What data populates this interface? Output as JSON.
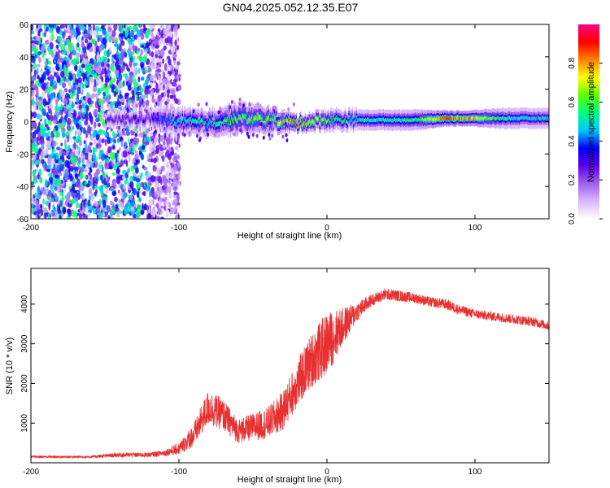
{
  "page_title": "GN04.2025.052.12.35.E07",
  "chart_data": [
    {
      "type": "heatmap",
      "title": "GN04.2025.052.12.35.E07",
      "xlabel": "Height of straight line (km)",
      "ylabel": "Frequency (Hz)",
      "xlim": [
        -200,
        150
      ],
      "ylim": [
        -60,
        60
      ],
      "x_ticks": [
        -200,
        -100,
        0,
        100
      ],
      "y_ticks": [
        60,
        40,
        20,
        0,
        -20,
        -40,
        -60
      ],
      "colorbar": {
        "label": "Normalized spectral amplitude",
        "range": [
          0,
          1
        ],
        "ticks": [
          "0.0",
          "0.2",
          "0.4",
          "0.6",
          "0.8"
        ],
        "tick_values": [
          0,
          0.2,
          0.4,
          0.6,
          0.8
        ],
        "colors": [
          "#ffffff",
          "#d8b8f8",
          "#a060f0",
          "#5a00e8",
          "#0000ff",
          "#00c8ff",
          "#00ff80",
          "#60ff00",
          "#ffff00",
          "#ff8000",
          "#ff0000",
          "#ff0080"
        ]
      },
      "noise_region": {
        "x_from": -200,
        "x_to": -105,
        "freq_spread": 60,
        "amplitude": 0.25
      },
      "ridge": [
        {
          "x": -150,
          "freq": 1,
          "amp": 0.3,
          "width": 3
        },
        {
          "x": -120,
          "freq": 2,
          "amp": 0.3,
          "width": 4
        },
        {
          "x": -110,
          "freq": 1,
          "amp": 0.4,
          "width": 5
        },
        {
          "x": -100,
          "freq": 0,
          "amp": 0.5,
          "width": 5
        },
        {
          "x": -80,
          "freq": -1,
          "amp": 0.55,
          "width": 5
        },
        {
          "x": -60,
          "freq": 2,
          "amp": 0.6,
          "width": 6
        },
        {
          "x": -40,
          "freq": 1,
          "amp": 0.65,
          "width": 5
        },
        {
          "x": -20,
          "freq": -1,
          "amp": 0.85,
          "width": 3
        },
        {
          "x": 0,
          "freq": 1,
          "amp": 0.6,
          "width": 4
        },
        {
          "x": 20,
          "freq": 1,
          "amp": 0.5,
          "width": 4
        },
        {
          "x": 60,
          "freq": 1,
          "amp": 0.55,
          "width": 4
        },
        {
          "x": 80,
          "freq": 2,
          "amp": 0.9,
          "width": 3
        },
        {
          "x": 95,
          "freq": 2,
          "amp": 0.8,
          "width": 3
        },
        {
          "x": 120,
          "freq": 2,
          "amp": 0.5,
          "width": 4
        },
        {
          "x": 150,
          "freq": 2,
          "amp": 0.45,
          "width": 4
        }
      ]
    },
    {
      "type": "line",
      "xlabel": "Height of straight line (km)",
      "ylabel": "SNR (10 * v/v)",
      "xlim": [
        -200,
        150
      ],
      "ylim": [
        0,
        4900
      ],
      "x_ticks": [
        -200,
        -100,
        0,
        100
      ],
      "y_ticks": [
        1000,
        2000,
        3000,
        4000
      ],
      "color": "#e83030",
      "series": [
        {
          "name": "SNR",
          "x": [
            -200,
            -180,
            -160,
            -140,
            -120,
            -110,
            -100,
            -90,
            -80,
            -70,
            -60,
            -50,
            -40,
            -30,
            -20,
            -10,
            0,
            10,
            20,
            30,
            40,
            50,
            60,
            70,
            80,
            90,
            100,
            110,
            120,
            130,
            140,
            150
          ],
          "values": [
            150,
            150,
            150,
            200,
            200,
            250,
            350,
            700,
            1400,
            1200,
            800,
            900,
            1000,
            1300,
            2000,
            2600,
            3000,
            3400,
            3800,
            4100,
            4250,
            4200,
            4150,
            4050,
            4000,
            3850,
            3750,
            3700,
            3650,
            3600,
            3550,
            3450
          ],
          "noise": [
            30,
            30,
            30,
            60,
            60,
            80,
            150,
            300,
            450,
            400,
            300,
            350,
            400,
            500,
            600,
            700,
            800,
            500,
            250,
            150,
            150,
            140,
            130,
            130,
            130,
            130,
            120,
            120,
            120,
            120,
            120,
            120
          ]
        }
      ]
    }
  ]
}
